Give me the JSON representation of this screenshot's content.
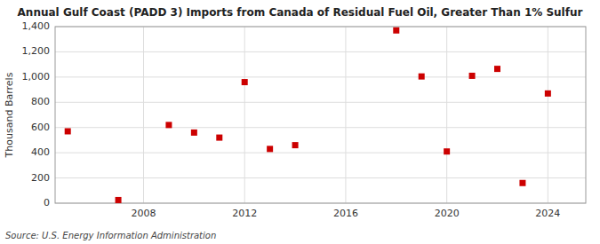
{
  "chart_data": {
    "type": "scatter",
    "title": "Annual Gulf Coast (PADD 3) Imports from Canada of Residual Fuel Oil, Greater Than 1% Sulfur",
    "ylabel": "Thousand Barrels",
    "source": "Source: U.S. Energy Information Administration",
    "x": [
      2005,
      2007,
      2009,
      2010,
      2011,
      2012,
      2013,
      2014,
      2018,
      2019,
      2020,
      2021,
      2022,
      2023,
      2024
    ],
    "values": [
      570,
      25,
      620,
      560,
      520,
      960,
      430,
      460,
      1370,
      1005,
      410,
      1010,
      1065,
      160,
      870
    ],
    "color": "#cc0000",
    "marker": "square",
    "xlim": [
      2004.5,
      2025.5
    ],
    "ylim": [
      0,
      1400
    ],
    "xticks": [
      2008,
      2012,
      2016,
      2020,
      2024
    ],
    "yticks": [
      0,
      200,
      400,
      600,
      800,
      {
        "value": 1000,
        "label": "1,000"
      },
      {
        "value": 1200,
        "label": "1,200"
      },
      {
        "value": 1400,
        "label": "1,400"
      }
    ],
    "grid": true
  }
}
